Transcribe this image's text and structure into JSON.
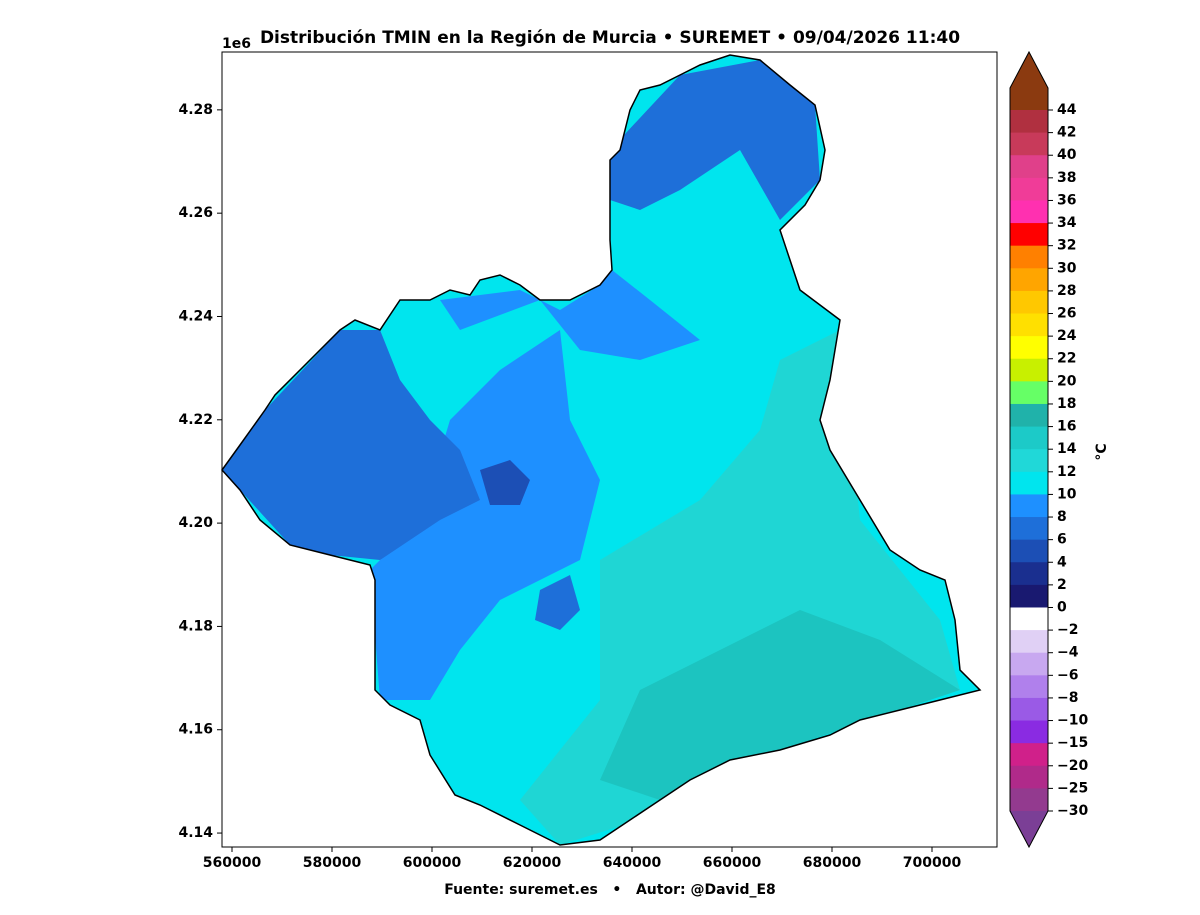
{
  "map": {
    "title": "Distribución TMIN en la Región de Murcia • SUREMET • 09/04/2026 11:40",
    "offset_label": "1e6",
    "xlim": [
      558000,
      713000
    ],
    "ylim": [
      4137300,
      4291200
    ],
    "xticks": [
      560000,
      580000,
      600000,
      620000,
      640000,
      660000,
      680000,
      700000
    ],
    "yticks": [
      {
        "value": 4140000,
        "label": "4.14"
      },
      {
        "value": 4160000,
        "label": "4.16"
      },
      {
        "value": 4180000,
        "label": "4.18"
      },
      {
        "value": 4200000,
        "label": "4.20"
      },
      {
        "value": 4220000,
        "label": "4.22"
      },
      {
        "value": 4240000,
        "label": "4.24"
      },
      {
        "value": 4260000,
        "label": "4.26"
      },
      {
        "value": 4280000,
        "label": "4.28"
      }
    ],
    "colorbar": {
      "label": "°C",
      "ticks": [
        44,
        42,
        40,
        38,
        36,
        34,
        32,
        30,
        28,
        26,
        24,
        22,
        20,
        18,
        16,
        14,
        12,
        10,
        8,
        6,
        4,
        2,
        0,
        {
          "value": -2,
          "label": "−2"
        },
        {
          "value": -4,
          "label": "−4"
        },
        {
          "value": -6,
          "label": "−6"
        },
        {
          "value": -8,
          "label": "−8"
        },
        {
          "value": -10,
          "label": "−10"
        },
        {
          "value": -15,
          "label": "−15"
        },
        {
          "value": -20,
          "label": "−20"
        },
        {
          "value": -25,
          "label": "−25"
        },
        {
          "value": -30,
          "label": "−30"
        }
      ],
      "colors": [
        "#b03040",
        "#c83a5a",
        "#e0408a",
        "#f03c98",
        "#ff30b0",
        "#ff0000",
        "#ff8000",
        "#ffa500",
        "#ffc800",
        "#ffe000",
        "#ffff00",
        "#c8f000",
        "#66ff66",
        "#20b2aa",
        "#1ccac8",
        "#20d8d8",
        "#00e5ee",
        "#1e90ff",
        "#1e6fd9",
        "#1c4fb5",
        "#1a2f8f",
        "#191970",
        "#ffffff",
        "#e0d0f5",
        "#c8a8f0",
        "#b080ec",
        "#9a5ae6",
        "#8a2be2",
        "#d0208a",
        "#b02a8a",
        "#933a8f"
      ],
      "over_color": "#8b3a10",
      "under_color": "#7b3f96"
    },
    "footer": "Fuente: suremet.es   •   Autor: @David_E8"
  }
}
